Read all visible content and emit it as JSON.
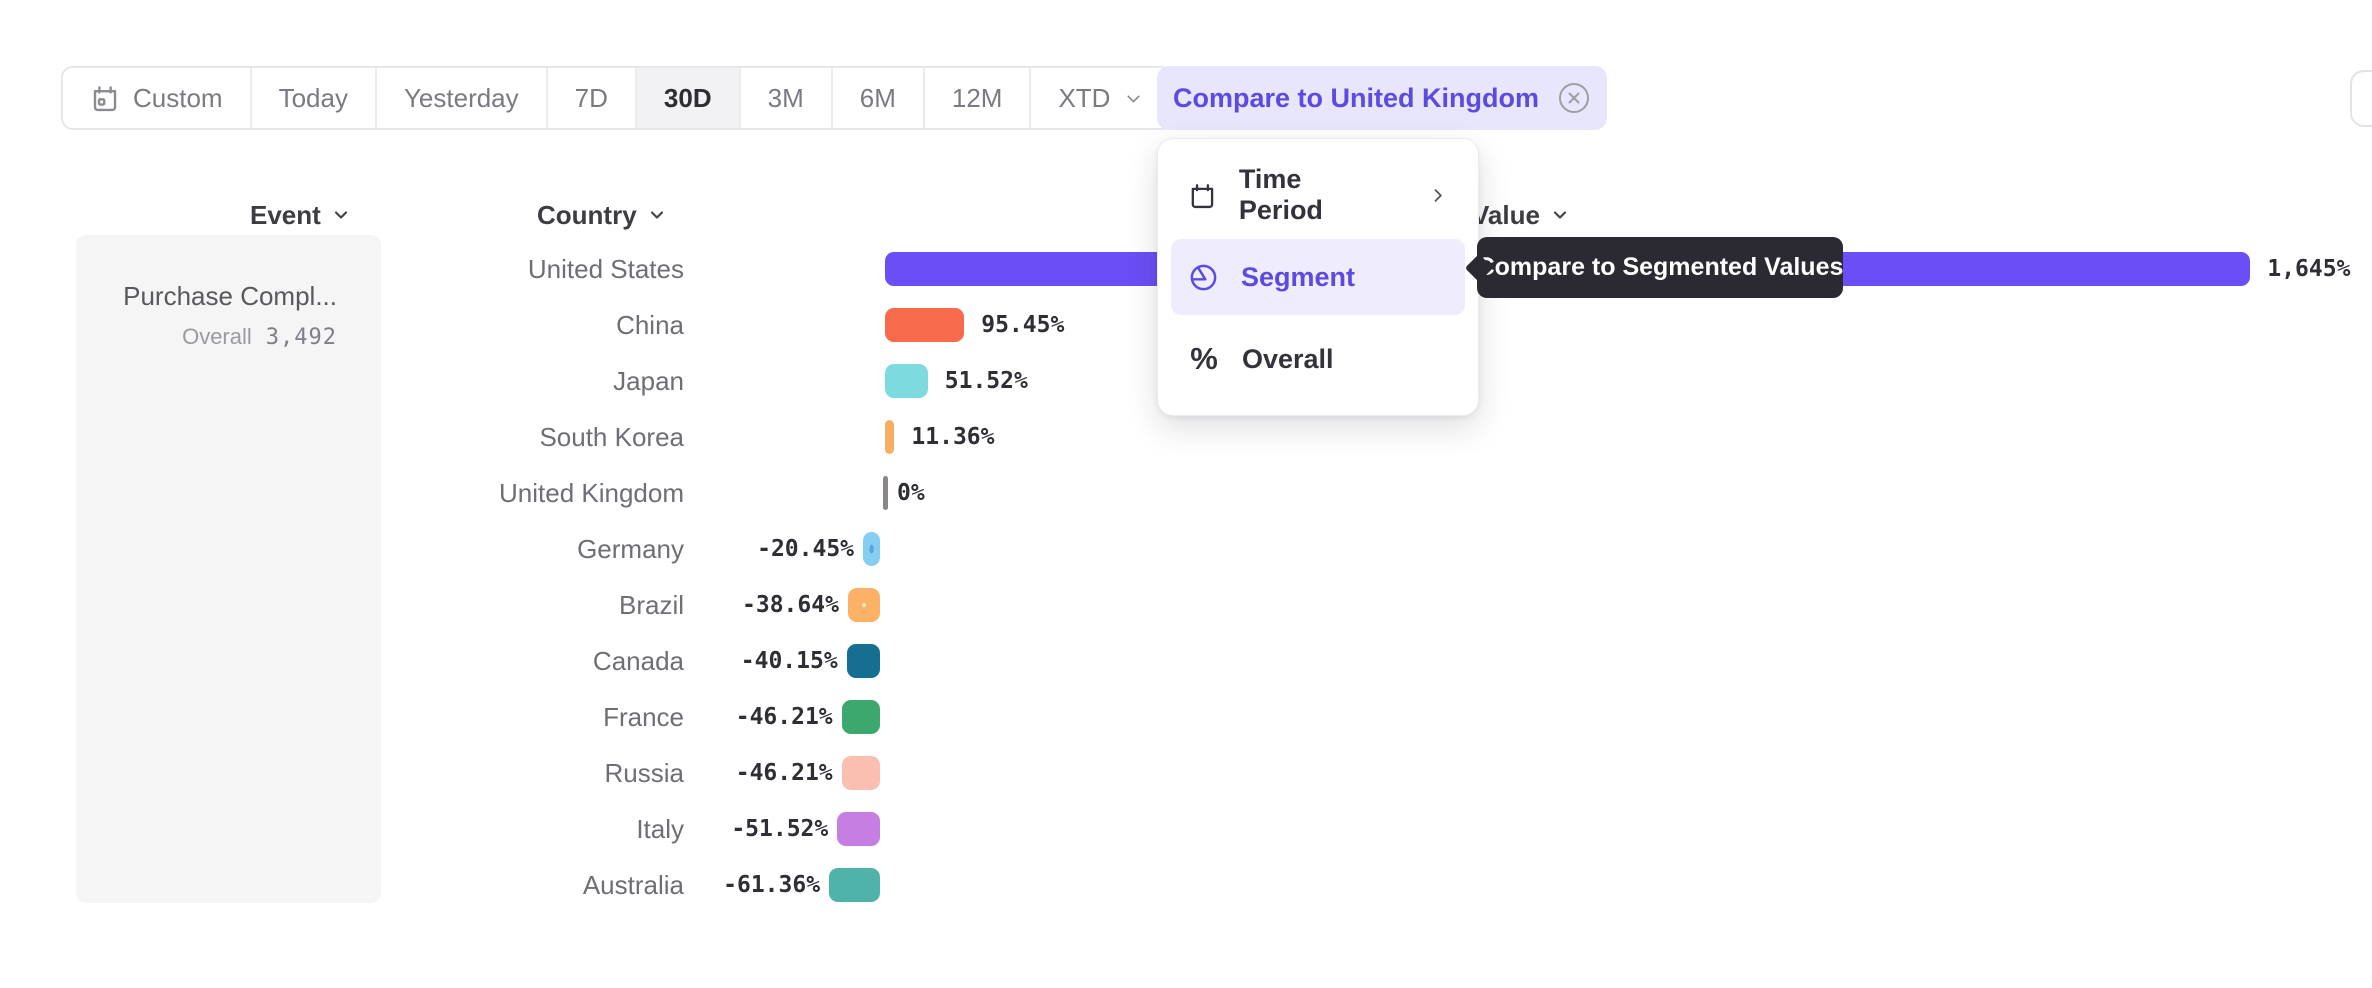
{
  "toolbar": {
    "buttons": [
      {
        "label": "Custom",
        "icon": "calendar",
        "selected": false
      },
      {
        "label": "Today",
        "selected": false
      },
      {
        "label": "Yesterday",
        "selected": false
      },
      {
        "label": "7D",
        "selected": false
      },
      {
        "label": "30D",
        "selected": true
      },
      {
        "label": "3M",
        "selected": false
      },
      {
        "label": "6M",
        "selected": false
      },
      {
        "label": "12M",
        "selected": false
      },
      {
        "label": "XTD",
        "chevron": true,
        "selected": false
      }
    ],
    "compare_chip": {
      "label": "Compare to United Kingdom"
    }
  },
  "menu": {
    "items": [
      {
        "label": "Time Period",
        "icon": "calendar",
        "has_submenu": true,
        "selected": false
      },
      {
        "label": "Segment",
        "icon": "segment",
        "has_submenu": false,
        "selected": true
      },
      {
        "label": "Overall",
        "icon": "percent",
        "has_submenu": false,
        "selected": false
      }
    ]
  },
  "tooltip": {
    "text": "Compare to Segmented Values"
  },
  "columns": {
    "event": "Event",
    "country": "Country",
    "value": "Value"
  },
  "event_panel": {
    "name": "Purchase Compl...",
    "overall_label": "Overall",
    "overall_value": "3,492"
  },
  "chart_data": {
    "type": "bar",
    "orientation": "horizontal",
    "unit": "percent vs comparison baseline",
    "baseline_category": "United Kingdom",
    "categories": [
      "United States",
      "China",
      "Japan",
      "South Korea",
      "United Kingdom",
      "Germany",
      "Brazil",
      "Canada",
      "France",
      "Russia",
      "Italy",
      "Australia"
    ],
    "values": [
      1645,
      95.45,
      51.52,
      11.36,
      0,
      -20.45,
      -38.64,
      -40.15,
      -46.21,
      -46.21,
      -51.52,
      -61.36
    ],
    "value_labels": [
      "1,645%",
      "95.45%",
      "51.52%",
      "11.36%",
      "0%",
      "-20.45%",
      "-38.64%",
      "-40.15%",
      "-46.21%",
      "-46.21%",
      "-51.52%",
      "-61.36%"
    ],
    "bar_styles": [
      {
        "color": "#6B4EF5"
      },
      {
        "color": "#F76A4C"
      },
      {
        "color": "#7DDBE0"
      },
      {
        "color": "#FBAE63"
      },
      {
        "color": "#8B8787"
      },
      {
        "color": "#85CDF1",
        "dot": "#60A0DF"
      },
      {
        "color": "#FBB166",
        "dot": "#FDDFAE"
      },
      {
        "color": "#156F90"
      },
      {
        "color": "#3CA86D"
      },
      {
        "color": "#FBBFB1"
      },
      {
        "color": "#C67EE2"
      },
      {
        "color": "#4FB3A9"
      }
    ],
    "legend": "none",
    "grid": false
  },
  "colors": {
    "accent_purple": "#5B4BE1",
    "chip_bg": "#E8E6FC",
    "menu_highlight_bg": "#EFEDFD",
    "tooltip_bg": "#2B2A33",
    "panel_bg": "#F5F5F6",
    "toolbar_selected_bg": "#F2F2F4",
    "text_dark": "#2E2E35",
    "text_gray": "#6E6E74"
  }
}
